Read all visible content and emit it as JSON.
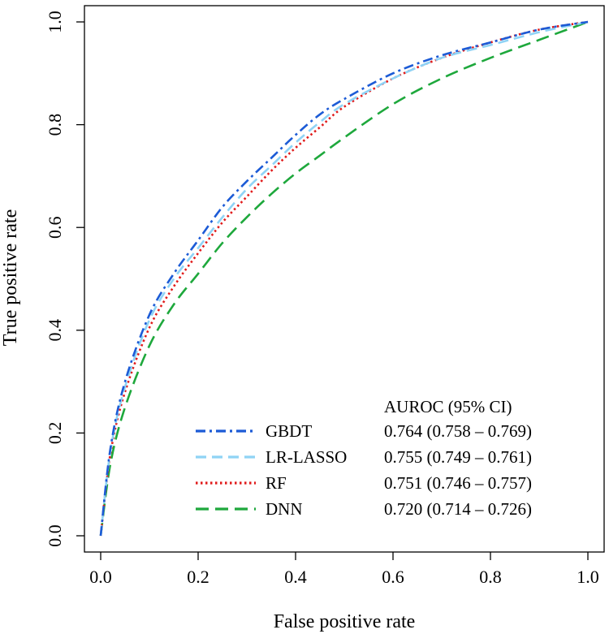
{
  "chart_data": {
    "type": "line",
    "xlabel": "False positive rate",
    "ylabel": "True positive rate",
    "xlim": [
      0,
      1
    ],
    "ylim": [
      0,
      1
    ],
    "x_ticks": [
      "0.0",
      "0.2",
      "0.4",
      "0.6",
      "0.8",
      "1.0"
    ],
    "y_ticks": [
      "0.0",
      "0.2",
      "0.4",
      "0.6",
      "0.8",
      "1.0"
    ],
    "grid": false,
    "legend": {
      "position": "bottom-right",
      "header": "AUROC (95% CI)"
    },
    "series": [
      {
        "name": "GBDT",
        "auroc": "0.764 (0.758 – 0.769)",
        "color": "#1c5bd6",
        "dash": "dotdash",
        "x": [
          0,
          0.02,
          0.05,
          0.1,
          0.15,
          0.2,
          0.25,
          0.3,
          0.35,
          0.4,
          0.45,
          0.5,
          0.6,
          0.7,
          0.8,
          0.9,
          1.0
        ],
        "y": [
          0,
          0.17,
          0.3,
          0.43,
          0.51,
          0.575,
          0.64,
          0.69,
          0.735,
          0.78,
          0.82,
          0.85,
          0.9,
          0.935,
          0.96,
          0.985,
          1.0
        ]
      },
      {
        "name": "LR-LASSO",
        "auroc": "0.755 (0.749 – 0.761)",
        "color": "#8fd3f5",
        "dash": "dashed",
        "x": [
          0,
          0.02,
          0.05,
          0.1,
          0.15,
          0.2,
          0.25,
          0.3,
          0.35,
          0.4,
          0.45,
          0.5,
          0.6,
          0.7,
          0.8,
          0.9,
          1.0
        ],
        "y": [
          0,
          0.165,
          0.29,
          0.42,
          0.5,
          0.56,
          0.62,
          0.675,
          0.72,
          0.765,
          0.805,
          0.84,
          0.89,
          0.93,
          0.955,
          0.98,
          1.0
        ]
      },
      {
        "name": "RF",
        "auroc": "0.751 (0.746 – 0.757)",
        "color": "#e01b1b",
        "dash": "dotted",
        "x": [
          0,
          0.02,
          0.05,
          0.1,
          0.15,
          0.2,
          0.25,
          0.3,
          0.35,
          0.4,
          0.45,
          0.5,
          0.6,
          0.7,
          0.8,
          0.9,
          1.0
        ],
        "y": [
          0,
          0.16,
          0.28,
          0.405,
          0.485,
          0.55,
          0.61,
          0.66,
          0.71,
          0.755,
          0.795,
          0.835,
          0.89,
          0.93,
          0.96,
          0.985,
          1.0
        ]
      },
      {
        "name": "DNN",
        "auroc": "0.720 (0.714 – 0.726)",
        "color": "#1ea83c",
        "dash": "longdash",
        "x": [
          0,
          0.02,
          0.05,
          0.1,
          0.15,
          0.2,
          0.25,
          0.3,
          0.35,
          0.4,
          0.45,
          0.5,
          0.6,
          0.7,
          0.8,
          0.9,
          1.0
        ],
        "y": [
          0,
          0.14,
          0.25,
          0.37,
          0.45,
          0.51,
          0.57,
          0.62,
          0.665,
          0.705,
          0.74,
          0.775,
          0.84,
          0.89,
          0.93,
          0.965,
          1.0
        ]
      }
    ]
  }
}
